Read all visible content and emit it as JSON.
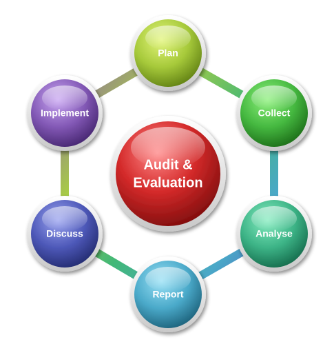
{
  "center": {
    "line1": "Audit &",
    "line2": "Evaluation",
    "color": "#d42a2a"
  },
  "steps": [
    {
      "label": "Plan",
      "color": "#a6c93a"
    },
    {
      "label": "Collect",
      "color": "#45b840"
    },
    {
      "label": "Analyse",
      "color": "#3cb386"
    },
    {
      "label": "Report",
      "color": "#4aa9c9"
    },
    {
      "label": "Discuss",
      "color": "#4d58b8"
    },
    {
      "label": "Implement",
      "color": "#8258b5"
    }
  ]
}
